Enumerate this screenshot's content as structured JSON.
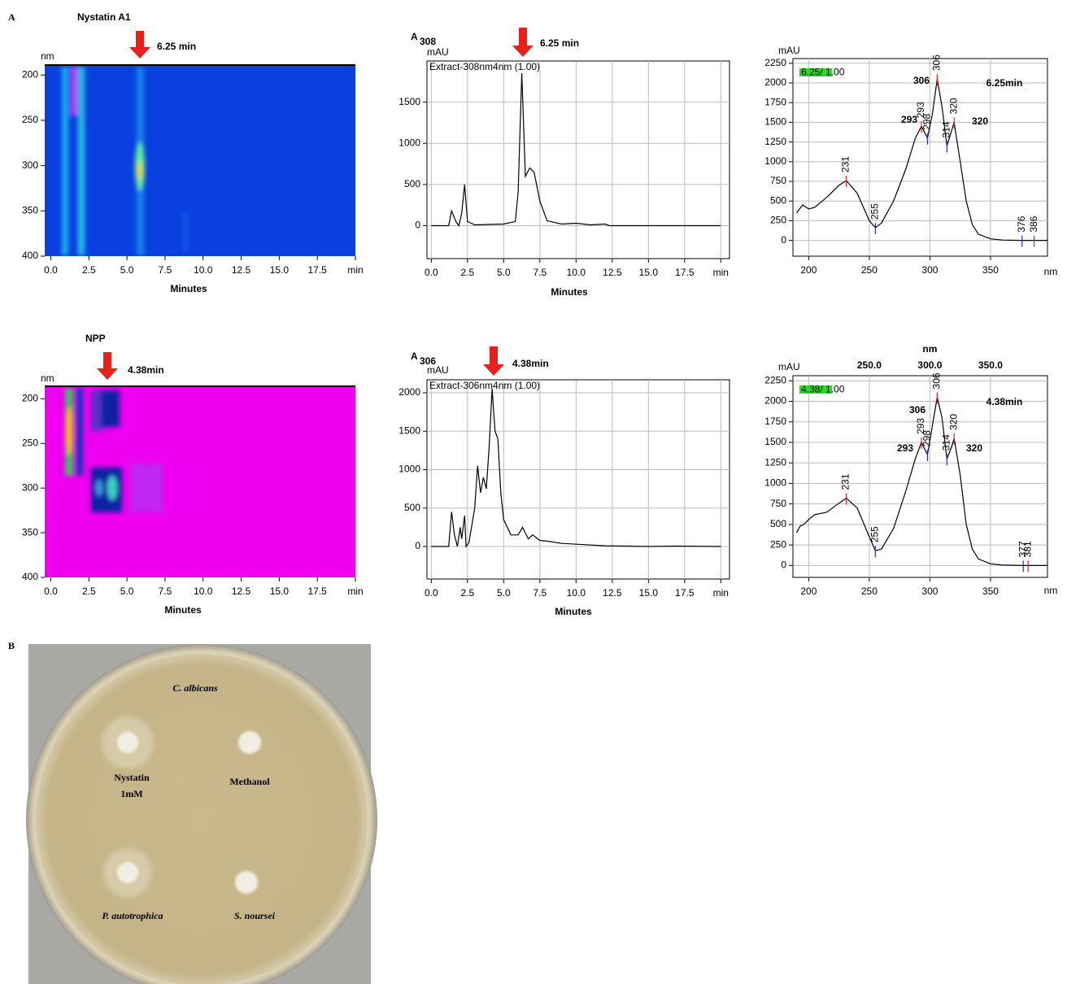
{
  "panel_labels": [
    "A",
    "B"
  ],
  "chart_data": [
    {
      "type": "heatmap",
      "title": "Nystatin A1",
      "annotation": "6.25 min",
      "xlabel": "Minutes",
      "y_unit": "nm",
      "color": "#0a40e0",
      "xlim": [
        -0.4,
        20
      ],
      "ylim": [
        189,
        400
      ],
      "xticks": [
        {
          "value": 0,
          "label": "0.0"
        },
        2.5,
        {
          "value": 5,
          "label": "5.0"
        },
        7.5,
        {
          "value": 10,
          "label": "10.0"
        },
        12.5,
        {
          "value": 15,
          "label": "15.0"
        },
        17.5,
        {
          "value": 20,
          "label": "min"
        }
      ],
      "yticks": [
        200,
        250,
        300,
        350,
        400
      ]
    },
    {
      "type": "line",
      "y_label": "A",
      "y_label_sub": "308",
      "y_unit": "mAU",
      "annotation": "6.25 min",
      "xlabel": "Minutes",
      "grid": true,
      "xlim": [
        -0.3,
        20.6
      ],
      "ylim": [
        -400,
        2000
      ],
      "xticks": [
        {
          "value": 0,
          "label": "0.0"
        },
        2.5,
        {
          "value": 5,
          "label": "5.0"
        },
        7.5,
        {
          "value": 10,
          "label": "10.0"
        },
        12.5,
        {
          "value": 15,
          "label": "15.0"
        },
        17.5,
        {
          "value": 20,
          "label": "min"
        }
      ],
      "yticks": [
        0,
        500,
        1000,
        1500
      ],
      "x": [
        0,
        1.2,
        1.4,
        1.7,
        1.9,
        2.1,
        2.3,
        2.5,
        3,
        5,
        5.8,
        6.0,
        6.25,
        6.5,
        6.8,
        7.1,
        7.5,
        8,
        9,
        10,
        11,
        12,
        12.3,
        20
      ],
      "series": [
        {
          "name": "Extract-308nm4nm (1.00)",
          "color": "#000000",
          "values": [
            0,
            0,
            180,
            50,
            0,
            150,
            500,
            50,
            10,
            20,
            50,
            400,
            1850,
            600,
            700,
            650,
            300,
            60,
            20,
            30,
            10,
            20,
            0,
            0
          ]
        }
      ]
    },
    {
      "type": "spectrum",
      "y_unit": "mAU",
      "xlabel": "nm",
      "badge": "6.25/ 1.00",
      "grid": true,
      "annotations": [
        "306",
        "6.25min",
        "293",
        "320"
      ],
      "xlim": [
        187,
        397
      ],
      "ylim": [
        -200,
        2310
      ],
      "xticks": [
        200,
        250,
        300,
        350
      ],
      "yticks": [
        0,
        250,
        500,
        750,
        1000,
        1250,
        1500,
        1750,
        2000,
        2250
      ],
      "x": [
        190,
        195,
        200,
        205,
        215,
        225,
        231,
        240,
        250,
        255,
        260,
        270,
        280,
        288,
        293,
        298,
        302,
        306,
        310,
        314,
        318,
        320,
        325,
        330,
        335,
        340,
        350,
        360,
        376,
        397
      ],
      "series": [
        {
          "color": "#000000",
          "values": [
            350,
            450,
            400,
            420,
            550,
            700,
            760,
            600,
            250,
            160,
            220,
            500,
            900,
            1300,
            1450,
            1300,
            1600,
            2050,
            1700,
            1200,
            1400,
            1500,
            1000,
            500,
            200,
            80,
            20,
            5,
            0,
            0
          ]
        }
      ],
      "peak_labels": [
        231,
        255,
        293,
        298,
        306,
        314,
        320,
        376,
        386
      ],
      "peak_colors": [
        "#e02020",
        "#2030d0",
        "#e02020",
        "#2030d0",
        "#e02020",
        "#2030d0",
        "#e02020",
        "#2030d0",
        "#e02020"
      ]
    },
    {
      "type": "heatmap",
      "title": "NPP",
      "annotation": "4.38min",
      "xlabel": "Minutes",
      "y_unit": "nm",
      "color": "#f000f0",
      "xlim": [
        -0.4,
        20
      ],
      "ylim": [
        186,
        400
      ],
      "xticks": [
        {
          "value": 0,
          "label": "0.0"
        },
        2.5,
        {
          "value": 5,
          "label": "5.0"
        },
        7.5,
        {
          "value": 10,
          "label": "10.0"
        },
        12.5,
        {
          "value": 15,
          "label": "15.0"
        },
        17.5,
        {
          "value": 20,
          "label": "min"
        }
      ],
      "yticks": [
        200,
        250,
        300,
        350,
        400
      ]
    },
    {
      "type": "line",
      "y_label": "A",
      "y_label_sub": "306",
      "y_unit": "mAU",
      "annotation": "4.38min",
      "xlabel": "Minutes",
      "grid": true,
      "xlim": [
        -0.3,
        20.6
      ],
      "ylim": [
        -423,
        2169
      ],
      "xticks": [
        {
          "value": 0,
          "label": "0.0"
        },
        2.5,
        {
          "value": 5,
          "label": "5.0"
        },
        7.5,
        {
          "value": 10,
          "label": "10.0"
        },
        12.5,
        {
          "value": 15,
          "label": "15.0"
        },
        17.5,
        {
          "value": 20,
          "label": "min"
        }
      ],
      "yticks": [
        0,
        500,
        1000,
        1500,
        2000
      ],
      "x": [
        0,
        1.2,
        1.4,
        1.6,
        1.8,
        2.0,
        2.1,
        2.3,
        2.4,
        2.6,
        3.0,
        3.2,
        3.4,
        3.6,
        3.8,
        4.0,
        4.2,
        4.4,
        4.6,
        4.8,
        5.0,
        5.5,
        6.0,
        6.3,
        6.7,
        7.0,
        7.5,
        8,
        9,
        10,
        12,
        15,
        17,
        20
      ],
      "series": [
        {
          "name": "Extract-306nm4nm (1.00)",
          "color": "#000000",
          "values": [
            0,
            0,
            450,
            150,
            0,
            250,
            100,
            400,
            0,
            50,
            500,
            1050,
            700,
            900,
            750,
            1300,
            2050,
            1500,
            1400,
            700,
            350,
            150,
            150,
            250,
            100,
            150,
            80,
            70,
            40,
            30,
            10,
            0,
            5,
            0
          ]
        }
      ]
    },
    {
      "type": "spectrum",
      "y_unit": "mAU",
      "xlabel": "nm",
      "badge": "4.38/ 1.00",
      "grid": true,
      "annotations": [
        "306",
        "4.38min",
        "293",
        "320"
      ],
      "x2label": "nm",
      "x2ticks": [
        {
          "value": 250,
          "label": "250.0"
        },
        {
          "value": 300,
          "label": "300.0"
        },
        {
          "value": 350,
          "label": "350.0"
        }
      ],
      "xlim": [
        187,
        397
      ],
      "ylim": [
        -145,
        2312
      ],
      "xticks": [
        200,
        250,
        300,
        350
      ],
      "yticks": [
        0,
        250,
        500,
        750,
        1000,
        1250,
        1500,
        1750,
        2000,
        2250
      ],
      "x": [
        190,
        193,
        196,
        200,
        205,
        215,
        225,
        231,
        240,
        250,
        255,
        260,
        270,
        280,
        288,
        293,
        298,
        302,
        306,
        310,
        314,
        318,
        320,
        325,
        330,
        335,
        340,
        350,
        360,
        377,
        397
      ],
      "series": [
        {
          "color": "#000000",
          "values": [
            400,
            480,
            500,
            560,
            620,
            650,
            760,
            820,
            700,
            350,
            180,
            200,
            450,
            900,
            1300,
            1500,
            1350,
            1700,
            2050,
            1800,
            1300,
            1450,
            1550,
            1100,
            500,
            200,
            80,
            20,
            5,
            0,
            0
          ]
        }
      ],
      "peak_labels": [
        231,
        255,
        293,
        298,
        306,
        314,
        320,
        377,
        381
      ],
      "peak_colors": [
        "#e02020",
        "#2030d0",
        "#e02020",
        "#2030d0",
        "#e02020",
        "#2030d0",
        "#e02020",
        "#2030d0",
        "#e02020"
      ]
    }
  ],
  "photo": {
    "labels": [
      "C. albicans",
      "Nystatin",
      "1mM",
      "Methanol",
      "P. autotrophica",
      "S. noursei"
    ]
  }
}
